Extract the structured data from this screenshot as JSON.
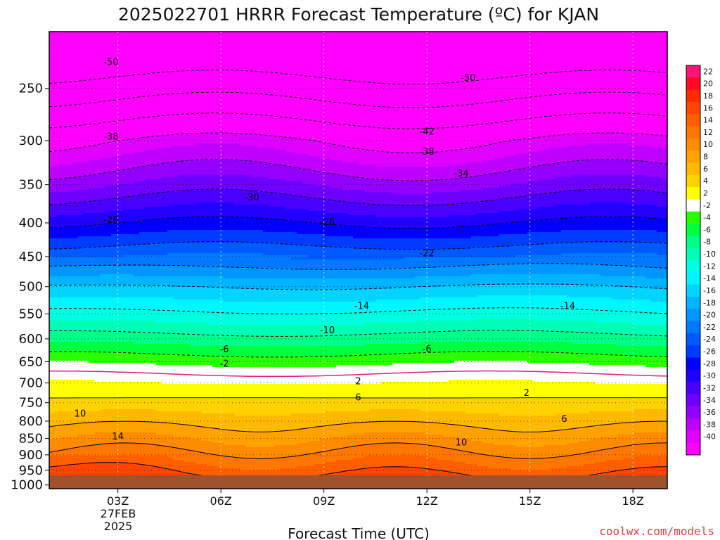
{
  "chart_data": {
    "type": "heatmap",
    "title": "2025022701 HRRR Forecast Temperature (ºC) for KJAN",
    "xlabel": "Forecast Time (UTC)",
    "ylabel": "",
    "x_ticks": [
      "03Z",
      "06Z",
      "09Z",
      "12Z",
      "15Z",
      "18Z"
    ],
    "x_date_label": [
      "27FEB",
      "2025"
    ],
    "y_ticks": [
      250,
      300,
      350,
      400,
      450,
      500,
      550,
      600,
      650,
      700,
      750,
      800,
      850,
      900,
      950,
      1000
    ],
    "y_unit": "hPa",
    "y_scale": "log",
    "ylim": [
      1013,
      205
    ],
    "xlim_hours": [
      1,
      19
    ],
    "colorbar": {
      "levels": [
        22,
        20,
        18,
        16,
        14,
        12,
        10,
        8,
        6,
        4,
        2,
        -2,
        -4,
        -6,
        -8,
        -10,
        -12,
        -14,
        -16,
        -18,
        -20,
        -22,
        -24,
        -26,
        -28,
        -30,
        -32,
        -34,
        -36,
        -38,
        -40
      ],
      "colors": [
        "#ff1477",
        "#ff0a23",
        "#ff2a00",
        "#ff4500",
        "#ff5f00",
        "#ff7600",
        "#ff8c00",
        "#ffa200",
        "#ffba00",
        "#ffd200",
        "#ffff00",
        "#ffffff",
        "#2aff00",
        "#00ff3c",
        "#00ff88",
        "#00ffb4",
        "#00ffe0",
        "#00f6ff",
        "#00d4ff",
        "#00b4ff",
        "#0096ff",
        "#0078ff",
        "#005aff",
        "#003cff",
        "#0000ff",
        "#2200ff",
        "#4800ff",
        "#6e00ff",
        "#9400ff",
        "#be00ff",
        "#e000ff",
        "#ff00ff"
      ]
    },
    "ground_color": "#a0522d",
    "contour_labels": [
      {
        "hour": 2.8,
        "pressure": 228,
        "text": "-50"
      },
      {
        "hour": 13.2,
        "pressure": 241,
        "text": "-50"
      },
      {
        "hour": 2.8,
        "pressure": 296,
        "text": "-38"
      },
      {
        "hour": 12.0,
        "pressure": 291,
        "text": "-42"
      },
      {
        "hour": 12.0,
        "pressure": 312,
        "text": "-38"
      },
      {
        "hour": 13.0,
        "pressure": 337,
        "text": "-34"
      },
      {
        "hour": 6.9,
        "pressure": 366,
        "text": "-30"
      },
      {
        "hour": 2.8,
        "pressure": 396,
        "text": "-26"
      },
      {
        "hour": 9.1,
        "pressure": 399,
        "text": "-26"
      },
      {
        "hour": 12.0,
        "pressure": 445,
        "text": "-22"
      },
      {
        "hour": 10.1,
        "pressure": 535,
        "text": "-14"
      },
      {
        "hour": 16.1,
        "pressure": 535,
        "text": "-14"
      },
      {
        "hour": 9.1,
        "pressure": 583,
        "text": "-10"
      },
      {
        "hour": 6.1,
        "pressure": 623,
        "text": "-6"
      },
      {
        "hour": 12.0,
        "pressure": 622,
        "text": "-6"
      },
      {
        "hour": 6.1,
        "pressure": 655,
        "text": "-2"
      },
      {
        "hour": 10.0,
        "pressure": 696,
        "text": "2"
      },
      {
        "hour": 14.9,
        "pressure": 725,
        "text": "2"
      },
      {
        "hour": 10.0,
        "pressure": 737,
        "text": "6"
      },
      {
        "hour": 16.0,
        "pressure": 794,
        "text": "6"
      },
      {
        "hour": 1.9,
        "pressure": 780,
        "text": "10"
      },
      {
        "hour": 13.0,
        "pressure": 862,
        "text": "10"
      },
      {
        "hour": 3.0,
        "pressure": 845,
        "text": "14"
      }
    ]
  },
  "watermark": "coolwx.com/models"
}
